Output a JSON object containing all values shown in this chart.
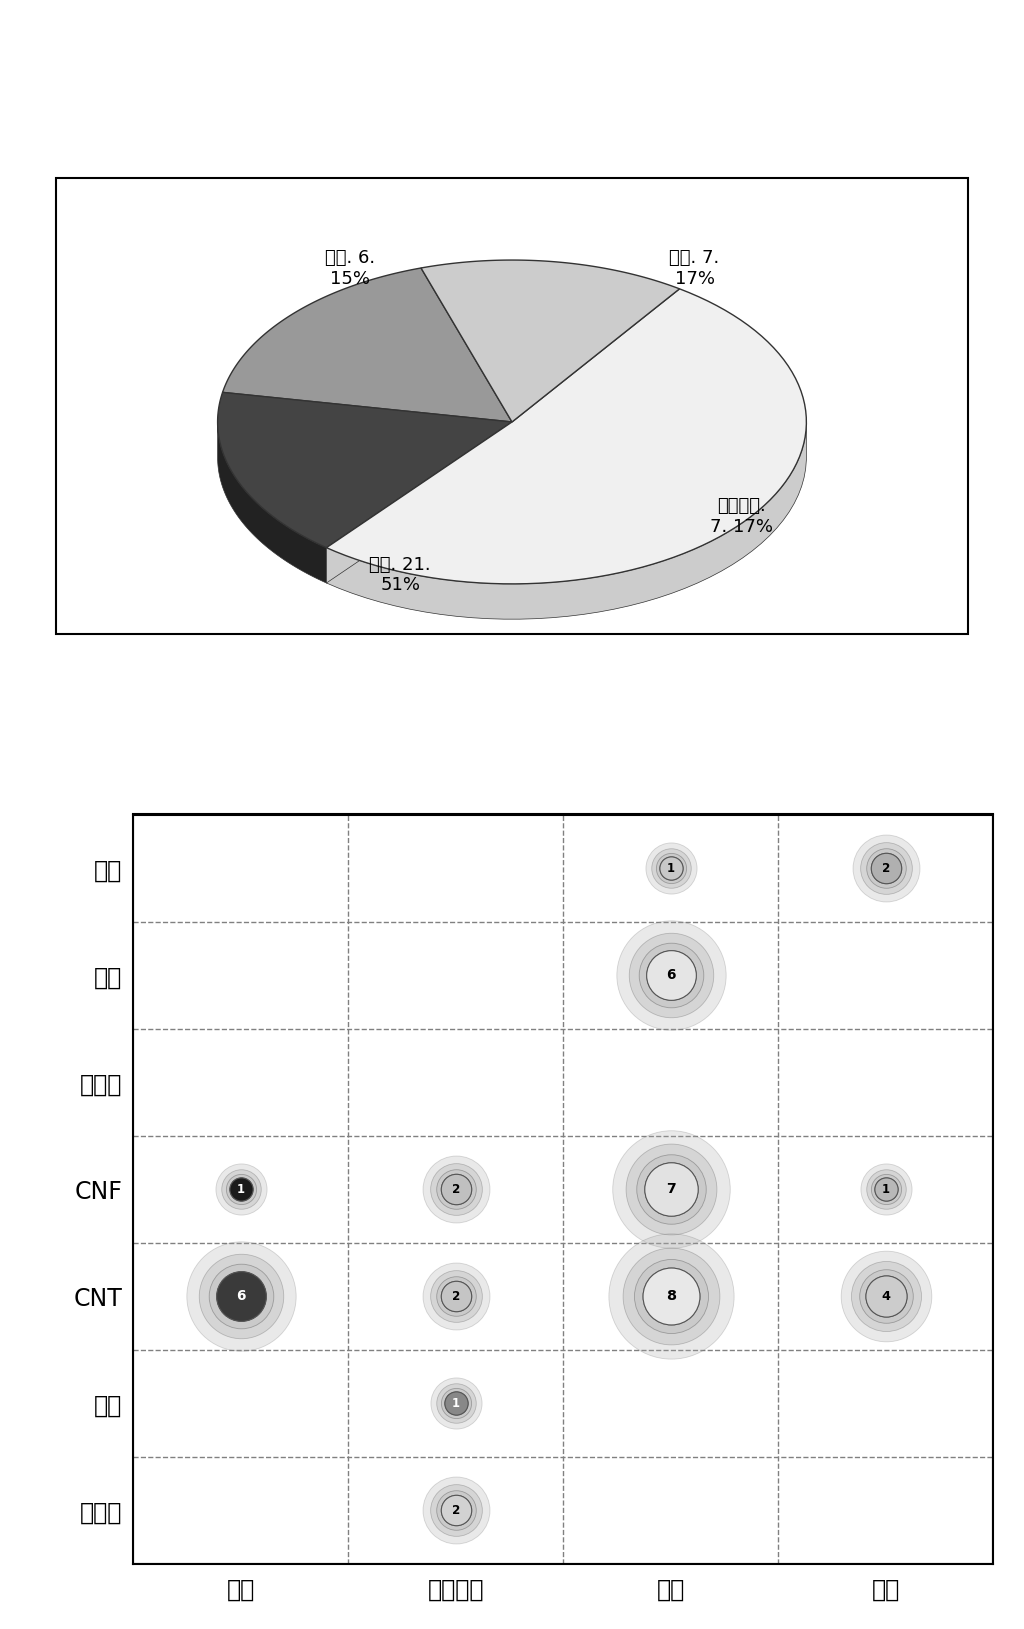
{
  "pie": {
    "labels": [
      "개인. 7.\n17%",
      "공공기관.\n7. 17%",
      "기업. 21.\n51%",
      "대학. 6.\n15%"
    ],
    "values": [
      7,
      7,
      21,
      6
    ],
    "colors": [
      "#999999",
      "#444444",
      "#f0f0f0",
      "#cccccc"
    ],
    "startangle": 108,
    "depth": 0.12,
    "depth_colors": [
      "#777777",
      "#222222",
      "#cccccc",
      "#aaaaaa"
    ]
  },
  "bubble": {
    "y_labels": [
      "활성탄",
      "흔연",
      "CNT",
      "CNF",
      "플러렌",
      "범용",
      "기타"
    ],
    "x_labels": [
      "개인",
      "공공기관",
      "기업",
      "대학"
    ],
    "bubbles": [
      {
        "xi": 2,
        "yi": 6,
        "value": 1,
        "facecolor": "#c8c8c8",
        "textcolor": "black"
      },
      {
        "xi": 3,
        "yi": 6,
        "value": 2,
        "facecolor": "#b0b0b0",
        "textcolor": "black"
      },
      {
        "xi": 2,
        "yi": 5,
        "value": 6,
        "facecolor": "#e5e5e5",
        "textcolor": "black"
      },
      {
        "xi": 0,
        "yi": 3,
        "value": 1,
        "facecolor": "#1a1a1a",
        "textcolor": "white"
      },
      {
        "xi": 1,
        "yi": 3,
        "value": 2,
        "facecolor": "#c0c0c0",
        "textcolor": "black"
      },
      {
        "xi": 2,
        "yi": 3,
        "value": 7,
        "facecolor": "#e2e2e2",
        "textcolor": "black"
      },
      {
        "xi": 3,
        "yi": 3,
        "value": 1,
        "facecolor": "#b8b8b8",
        "textcolor": "black"
      },
      {
        "xi": 0,
        "yi": 2,
        "value": 6,
        "facecolor": "#3a3a3a",
        "textcolor": "white"
      },
      {
        "xi": 1,
        "yi": 2,
        "value": 2,
        "facecolor": "#c5c5c5",
        "textcolor": "black"
      },
      {
        "xi": 2,
        "yi": 2,
        "value": 8,
        "facecolor": "#e8e8e8",
        "textcolor": "black"
      },
      {
        "xi": 3,
        "yi": 2,
        "value": 4,
        "facecolor": "#cccccc",
        "textcolor": "black"
      },
      {
        "xi": 1,
        "yi": 1,
        "value": 1,
        "facecolor": "#888888",
        "textcolor": "white"
      },
      {
        "xi": 1,
        "yi": 0,
        "value": 2,
        "facecolor": "#d2d2d2",
        "textcolor": "black"
      }
    ],
    "base_size": 80,
    "size_scale": 2.5
  }
}
